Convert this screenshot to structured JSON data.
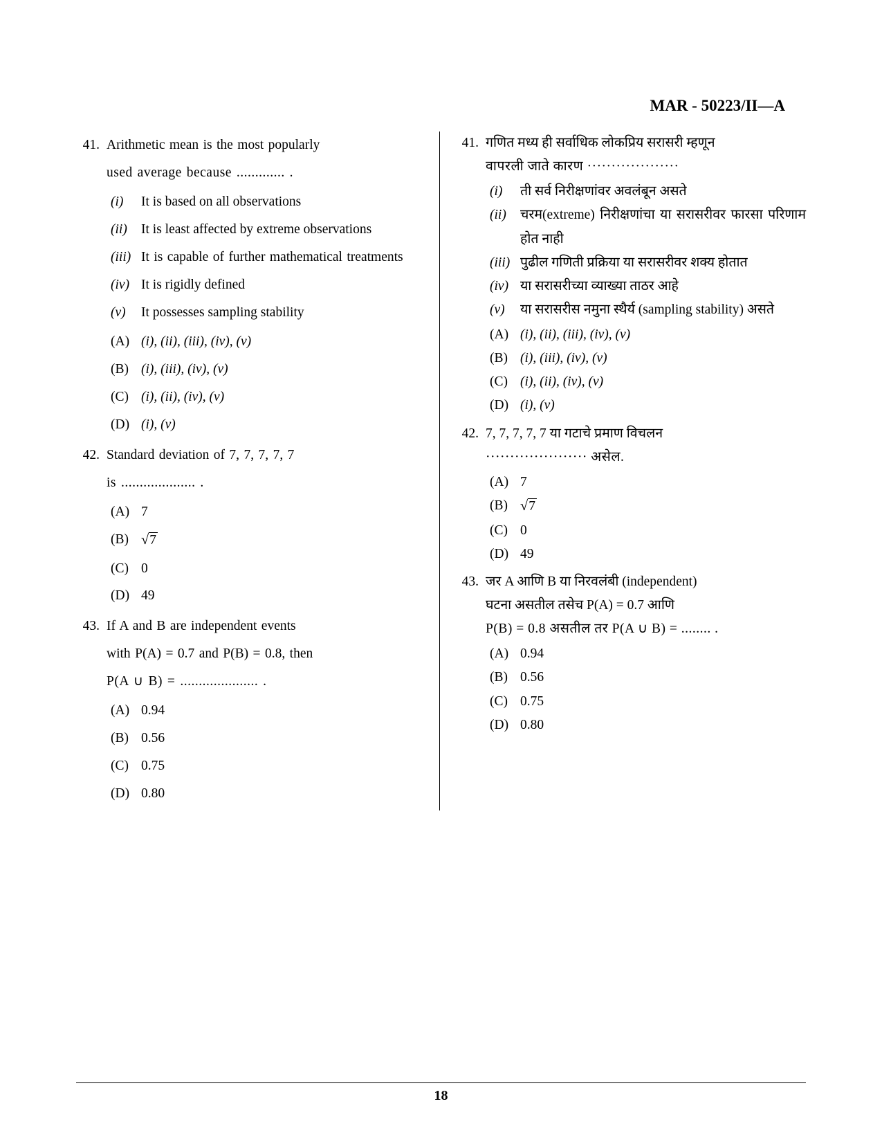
{
  "header": {
    "code": "MAR - 50223/II—A"
  },
  "page_number": "18",
  "left": {
    "questions": [
      {
        "num": "41.",
        "text_lines": [
          "Arithmetic mean is the most popularly",
          "used average because ............. ."
        ],
        "romans": [
          {
            "label": "(i)",
            "text": "It is based on all observations"
          },
          {
            "label": "(ii)",
            "text": "It is least affected by extreme observations"
          },
          {
            "label": "(iii)",
            "text": "It is capable of further mathematical treatments"
          },
          {
            "label": "(iv)",
            "text": "It is rigidly defined"
          },
          {
            "label": "(v)",
            "text": "It possesses sampling stability"
          }
        ],
        "options": [
          {
            "label": "(A)",
            "text": "(i), (ii), (iii), (iv), (v)",
            "italic": true
          },
          {
            "label": "(B)",
            "text": "(i), (iii), (iv), (v)",
            "italic": true
          },
          {
            "label": "(C)",
            "text": "(i), (ii), (iv), (v)",
            "italic": true
          },
          {
            "label": "(D)",
            "text": "(i), (v)",
            "italic": true
          }
        ]
      },
      {
        "num": "42.",
        "text_lines": [
          "Standard deviation of 7, 7, 7, 7, 7",
          "is .................... ."
        ],
        "options": [
          {
            "label": "(A)",
            "text": "7"
          },
          {
            "label": "(B)",
            "sqrt": "7"
          },
          {
            "label": "(C)",
            "text": "0"
          },
          {
            "label": "(D)",
            "text": "49"
          }
        ]
      },
      {
        "num": "43.",
        "text_lines": [
          "If A and B are independent events",
          "with P(A) = 0.7 and P(B) = 0.8, then",
          "P(A ∪ B) = ..................... ."
        ],
        "options": [
          {
            "label": "(A)",
            "text": "0.94"
          },
          {
            "label": "(B)",
            "text": "0.56"
          },
          {
            "label": "(C)",
            "text": "0.75"
          },
          {
            "label": "(D)",
            "text": "0.80"
          }
        ]
      }
    ]
  },
  "right": {
    "questions": [
      {
        "num": "41.",
        "text_lines": [
          "गणित मध्य ही सर्वाधिक लोकप्रिय सरासरी म्हणून",
          "वापरली जाते कारण ···················"
        ],
        "romans": [
          {
            "label": "(i)",
            "text": "ती सर्व निरीक्षणांवर अवलंबून असते"
          },
          {
            "label": "(ii)",
            "text": "चरम(extreme) निरीक्षणांचा या सरासरीवर फारसा परिणाम होत नाही"
          },
          {
            "label": "(iii)",
            "text": "पुढील गणिती प्रक्रिया या सरासरीवर शक्य होतात"
          },
          {
            "label": "(iv)",
            "text": "या सरासरीच्या व्याख्या ताठर आहे"
          },
          {
            "label": "(v)",
            "text": "या सरासरीस नमुना स्थैर्य (sampling stability) असते"
          }
        ],
        "options": [
          {
            "label": "(A)",
            "text": "(i), (ii), (iii), (iv), (v)",
            "italic": true
          },
          {
            "label": "(B)",
            "text": "(i), (iii), (iv), (v)",
            "italic": true
          },
          {
            "label": "(C)",
            "text": "(i), (ii), (iv), (v)",
            "italic": true
          },
          {
            "label": "(D)",
            "text": "(i), (v)",
            "italic": true
          }
        ]
      },
      {
        "num": "42.",
        "text_lines": [
          "7, 7, 7, 7, 7 या गटाचे प्रमाण विचलन",
          "····················· असेल."
        ],
        "options": [
          {
            "label": "(A)",
            "text": "7"
          },
          {
            "label": "(B)",
            "sqrt": "7"
          },
          {
            "label": "(C)",
            "text": "0"
          },
          {
            "label": "(D)",
            "text": "49"
          }
        ]
      },
      {
        "num": "43.",
        "text_lines": [
          "जर A आणि B या निरवलंबी (independent)",
          "घटना असतील तसेच P(A) = 0.7 आणि",
          "P(B) = 0.8 असतील तर P(A ∪ B) = ........ ."
        ],
        "options": [
          {
            "label": "(A)",
            "text": "0.94"
          },
          {
            "label": "(B)",
            "text": "0.56"
          },
          {
            "label": "(C)",
            "text": "0.75"
          },
          {
            "label": "(D)",
            "text": "0.80"
          }
        ]
      }
    ]
  }
}
